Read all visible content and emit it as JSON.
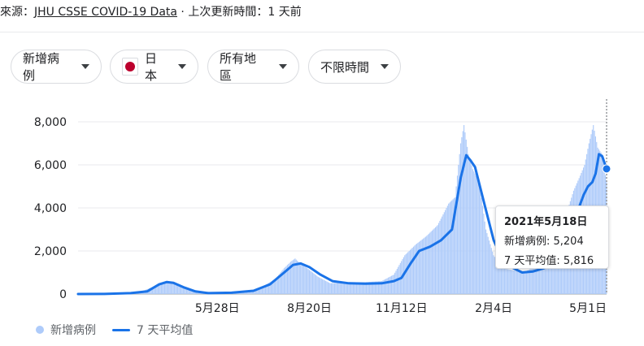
{
  "source": {
    "prefix": "來源：",
    "link_text": "JHU CSSE COVID-19 Data",
    "suffix": " · 上次更新時間：1 天前"
  },
  "filters": {
    "metric": "新增病例",
    "country": "日本",
    "region": "所有地區",
    "period": "不限時間"
  },
  "colors": {
    "bars": "#aecbfa",
    "line": "#1a73e8",
    "flag_red": "#bc002d"
  },
  "chart_data": {
    "type": "bar",
    "ylim": [
      0,
      8000
    ],
    "yticks": [
      0,
      2000,
      4000,
      6000,
      8000
    ],
    "ytick_labels": [
      "0",
      "2,000",
      "4,000",
      "6,000",
      "8,000"
    ],
    "xlim": [
      "2020-01-22",
      "2021-05-18"
    ],
    "xticks": [
      "2020-05-28",
      "2020-08-20",
      "2020-11-12",
      "2021-02-04",
      "2021-05-01"
    ],
    "xtick_labels": [
      "5月28日",
      "8月20日",
      "11月12日",
      "2月4日",
      "5月1日"
    ],
    "grid": true,
    "legend_position": "bottom-left",
    "series": [
      {
        "name": "新增病例",
        "kind": "bar",
        "dates": [
          "2020-01-22",
          "2020-02-10",
          "2020-03-01",
          "2020-03-20",
          "2020-04-05",
          "2020-04-12",
          "2020-04-19",
          "2020-04-28",
          "2020-05-08",
          "2020-05-20",
          "2020-06-10",
          "2020-06-30",
          "2020-07-10",
          "2020-07-20",
          "2020-07-28",
          "2020-08-03",
          "2020-08-07",
          "2020-08-12",
          "2020-08-18",
          "2020-08-28",
          "2020-09-08",
          "2020-09-25",
          "2020-10-10",
          "2020-10-25",
          "2020-11-05",
          "2020-11-15",
          "2020-11-25",
          "2020-12-05",
          "2020-12-15",
          "2020-12-25",
          "2020-12-31",
          "2021-01-05",
          "2021-01-08",
          "2021-01-12",
          "2021-01-16",
          "2021-01-22",
          "2021-01-28",
          "2021-02-04",
          "2021-02-12",
          "2021-02-22",
          "2021-03-05",
          "2021-03-15",
          "2021-03-25",
          "2021-04-02",
          "2021-04-10",
          "2021-04-18",
          "2021-04-24",
          "2021-04-28",
          "2021-05-02",
          "2021-05-06",
          "2021-05-10",
          "2021-05-14",
          "2021-05-18"
        ],
        "values": [
          0,
          15,
          40,
          120,
          450,
          600,
          520,
          300,
          120,
          40,
          60,
          150,
          400,
          700,
          1200,
          1500,
          1650,
          1400,
          1200,
          800,
          500,
          550,
          550,
          600,
          900,
          1800,
          2300,
          2700,
          3200,
          4200,
          4500,
          7000,
          7850,
          6500,
          5800,
          5200,
          3000,
          1800,
          1200,
          1100,
          1050,
          1300,
          1800,
          2500,
          3500,
          4800,
          5500,
          6000,
          7000,
          7850,
          6800,
          6500,
          5204
        ]
      },
      {
        "name": "7 天平均值",
        "kind": "line",
        "dates": [
          "2020-01-22",
          "2020-02-15",
          "2020-03-10",
          "2020-03-25",
          "2020-04-05",
          "2020-04-12",
          "2020-04-18",
          "2020-04-28",
          "2020-05-08",
          "2020-05-20",
          "2020-06-10",
          "2020-06-30",
          "2020-07-15",
          "2020-07-28",
          "2020-08-05",
          "2020-08-12",
          "2020-08-20",
          "2020-08-30",
          "2020-09-10",
          "2020-09-25",
          "2020-10-10",
          "2020-10-25",
          "2020-11-05",
          "2020-11-12",
          "2020-11-20",
          "2020-11-28",
          "2020-12-08",
          "2020-12-18",
          "2020-12-28",
          "2021-01-05",
          "2021-01-10",
          "2021-01-14",
          "2021-01-18",
          "2021-01-25",
          "2021-02-04",
          "2021-02-12",
          "2021-02-22",
          "2021-03-02",
          "2021-03-12",
          "2021-03-22",
          "2021-04-01",
          "2021-04-08",
          "2021-04-15",
          "2021-04-22",
          "2021-04-27",
          "2021-05-01",
          "2021-05-05",
          "2021-05-08",
          "2021-05-11",
          "2021-05-14",
          "2021-05-18"
        ],
        "values": [
          0,
          5,
          40,
          120,
          450,
          560,
          520,
          300,
          120,
          40,
          60,
          150,
          450,
          1000,
          1350,
          1420,
          1250,
          900,
          600,
          500,
          480,
          500,
          600,
          750,
          1400,
          2000,
          2200,
          2500,
          3000,
          5400,
          6450,
          6200,
          5900,
          4500,
          2500,
          1600,
          1200,
          1000,
          1050,
          1200,
          1600,
          2100,
          3000,
          3900,
          4600,
          5000,
          5200,
          5600,
          6500,
          6400,
          5816
        ]
      }
    ],
    "tooltip": {
      "date": "2021年5月18日",
      "lines": [
        "新增病例: 5,204",
        "7 天平均值: 5,816"
      ]
    },
    "legend": [
      "新增病例",
      "7 天平均值"
    ]
  }
}
